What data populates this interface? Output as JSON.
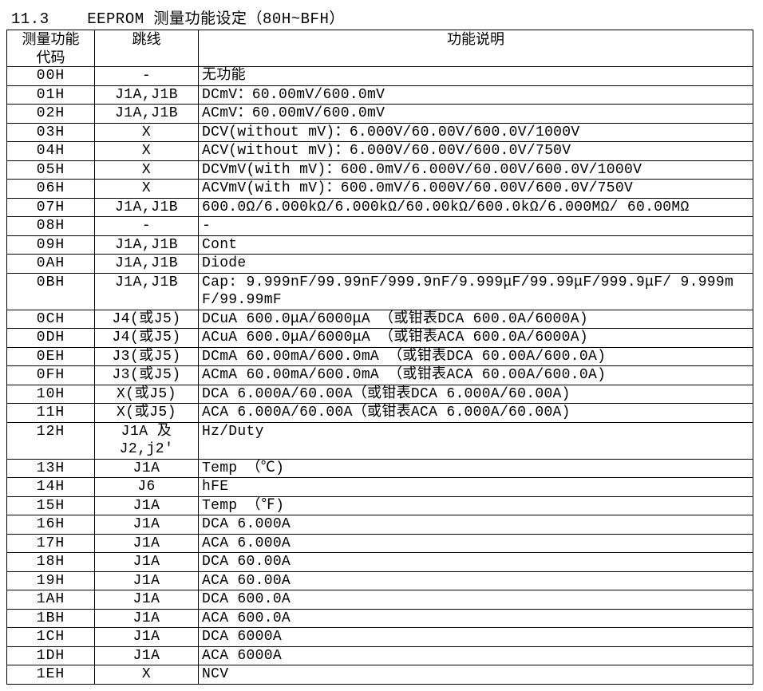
{
  "section_title": "11.3    EEPROM 测量功能设定（80H~BFH）",
  "headers": {
    "code": "测量功能\n代码",
    "jumper": "跳线",
    "desc": "功能说明"
  },
  "rows": [
    {
      "code": "00H",
      "jumper": "-",
      "desc": "无功能"
    },
    {
      "code": "01H",
      "jumper": "J1A,J1B",
      "desc": "DCmV：60.00mV/600.0mV"
    },
    {
      "code": "02H",
      "jumper": "J1A,J1B",
      "desc": "ACmV：60.00mV/600.0mV"
    },
    {
      "code": "03H",
      "jumper": "X",
      "desc": "DCV(without mV)：6.000V/60.00V/600.0V/1000V"
    },
    {
      "code": "04H",
      "jumper": "X",
      "desc": "ACV(without mV)：6.000V/60.00V/600.0V/750V"
    },
    {
      "code": "05H",
      "jumper": "X",
      "desc": "DCVmV(with mV)：600.0mV/6.000V/60.00V/600.0V/1000V"
    },
    {
      "code": "06H",
      "jumper": "X",
      "desc": "ACVmV(with mV)：600.0mV/6.000V/60.00V/600.0V/750V"
    },
    {
      "code": "07H",
      "jumper": "J1A,J1B",
      "desc": "600.0Ω/6.000kΩ/6.000kΩ/60.00kΩ/600.0kΩ/6.000MΩ/ 60.00MΩ"
    },
    {
      "code": "08H",
      "jumper": "-",
      "desc": "-"
    },
    {
      "code": "09H",
      "jumper": "J1A,J1B",
      "desc": "Cont"
    },
    {
      "code": "0AH",
      "jumper": "J1A,J1B",
      "desc": "Diode"
    },
    {
      "code": "0BH",
      "jumper": "J1A,J1B",
      "desc": "Cap:   9.999nF/99.99nF/999.9nF/9.999μF/99.99μF/999.9μF/ 9.999mF/99.99mF"
    },
    {
      "code": "0CH",
      "jumper": "J4(或J5)",
      "desc": "DCuA 600.0μA/6000μA （或钳表DCA 600.0A/6000A)"
    },
    {
      "code": "0DH",
      "jumper": "J4(或J5)",
      "desc": "ACuA 600.0μA/6000μA （或钳表ACA 600.0A/6000A)"
    },
    {
      "code": "0EH",
      "jumper": "J3(或J5)",
      "desc": "DCmA 60.00mA/600.0mA （或钳表DCA 60.00A/600.0A)"
    },
    {
      "code": "0FH",
      "jumper": "J3(或J5)",
      "desc": "ACmA 60.00mA/600.0mA （或钳表ACA 60.00A/600.0A)"
    },
    {
      "code": "10H",
      "jumper": "X(或J5)",
      "desc": "DCA 6.000A/60.00A（或钳表DCA 6.000A/60.00A)"
    },
    {
      "code": "11H",
      "jumper": "X(或J5)",
      "desc": "ACA 6.000A/60.00A（或钳表ACA 6.000A/60.00A)"
    },
    {
      "code": "12H",
      "jumper": "J1A 及 J2,j2'",
      "desc": "Hz/Duty"
    },
    {
      "code": "13H",
      "jumper": "J1A",
      "desc": "Temp （℃)"
    },
    {
      "code": "14H",
      "jumper": "J6",
      "desc": "hFE"
    },
    {
      "code": "15H",
      "jumper": "J1A",
      "desc": "Temp （℉)"
    },
    {
      "code": "16H",
      "jumper": "J1A",
      "desc": "DCA 6.000A"
    },
    {
      "code": "17H",
      "jumper": "J1A",
      "desc": "ACA 6.000A"
    },
    {
      "code": "18H",
      "jumper": "J1A",
      "desc": "DCA 60.00A"
    },
    {
      "code": "19H",
      "jumper": "J1A",
      "desc": "ACA 60.00A"
    },
    {
      "code": "1AH",
      "jumper": "J1A",
      "desc": "DCA 600.0A"
    },
    {
      "code": "1BH",
      "jumper": "J1A",
      "desc": "ACA 600.0A"
    },
    {
      "code": "1CH",
      "jumper": "J1A",
      "desc": "DCA 6000A"
    },
    {
      "code": "1DH",
      "jumper": "J1A",
      "desc": "ACA 6000A"
    },
    {
      "code": "1EH",
      "jumper": "X",
      "desc": "NCV"
    }
  ]
}
